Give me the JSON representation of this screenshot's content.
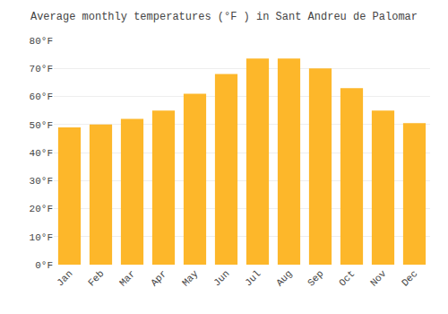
{
  "chart_data": {
    "type": "bar",
    "title": "Average monthly temperatures (°F ) in Sant Andreu de Palomar",
    "categories": [
      "Jan",
      "Feb",
      "Mar",
      "Apr",
      "May",
      "Jun",
      "Jul",
      "Aug",
      "Sep",
      "Oct",
      "Nov",
      "Dec"
    ],
    "values": [
      49,
      50,
      52,
      55,
      61,
      68,
      73.5,
      73.5,
      70,
      63,
      55,
      50.5
    ],
    "color": "#FDB72A",
    "ylim": [
      0,
      80
    ],
    "yticks": [
      {
        "value": 0,
        "label": "0°F"
      },
      {
        "value": 10,
        "label": "10°F"
      },
      {
        "value": 20,
        "label": "20°F"
      },
      {
        "value": 30,
        "label": "30°F"
      },
      {
        "value": 40,
        "label": "40°F"
      },
      {
        "value": 50,
        "label": "50°F"
      },
      {
        "value": 60,
        "label": "60°F"
      },
      {
        "value": 70,
        "label": "70°F"
      },
      {
        "value": 80,
        "label": "80°F"
      }
    ],
    "grid": true
  }
}
